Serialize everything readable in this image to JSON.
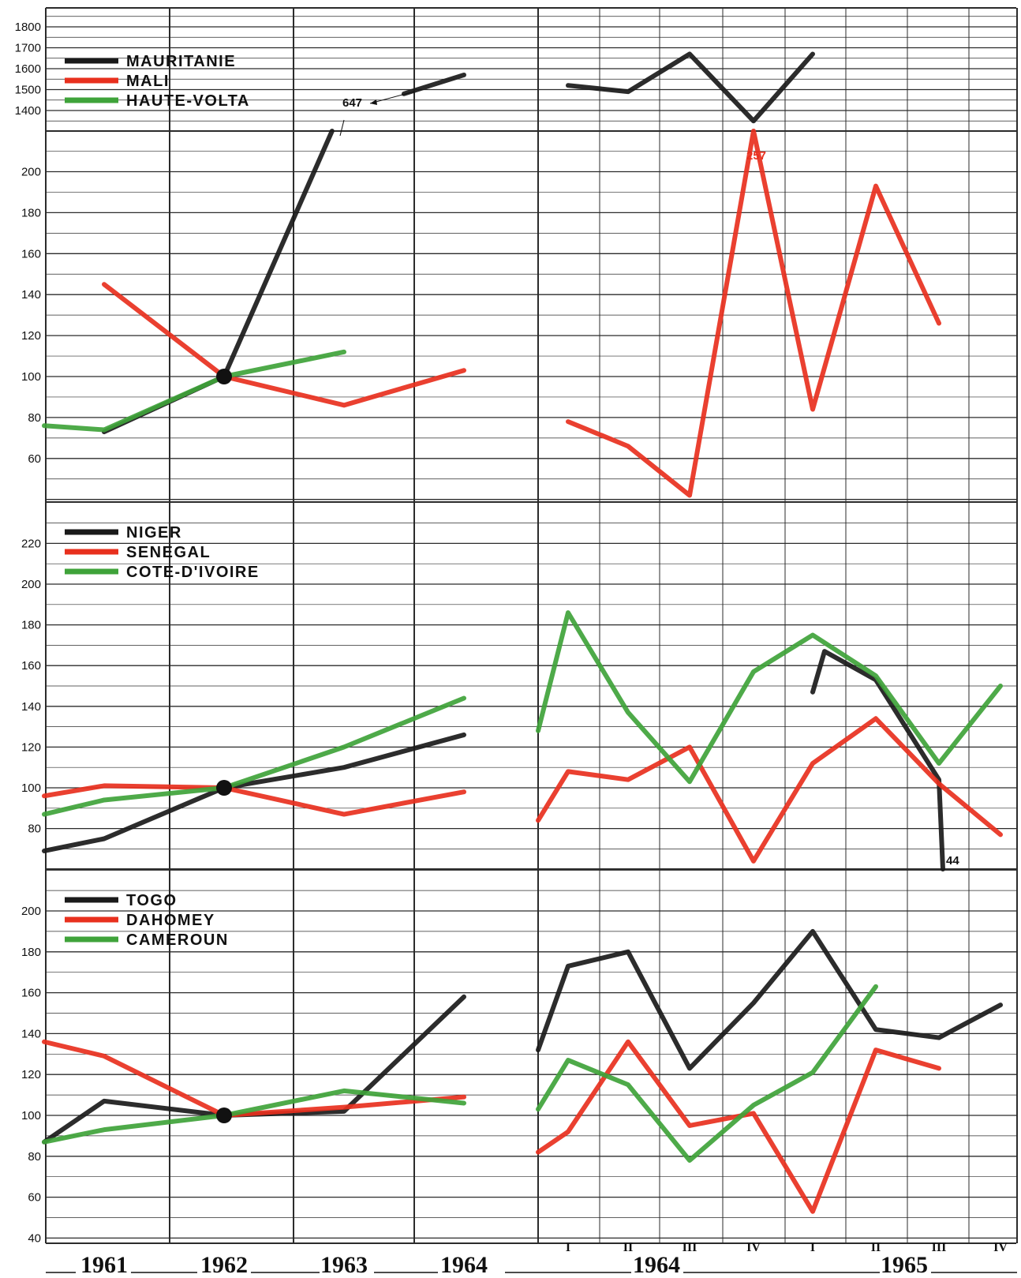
{
  "chart_data": [
    {
      "type": "line",
      "panel": "top",
      "legend_placement": "top-left",
      "grid": true,
      "break_axis": {
        "upper_ticks": [
          1400,
          1500,
          1600,
          1700,
          1800
        ],
        "upper_ylim": [
          1350,
          1850
        ]
      },
      "ylim": [
        40,
        230
      ],
      "yticks": [
        60,
        80,
        100,
        120,
        140,
        160,
        180,
        200
      ],
      "series": [
        {
          "name": "MAURITANIE",
          "color": "#1a1a1a",
          "annual": [
            {
              "x": 1961,
              "y": 73
            },
            {
              "x": 1962,
              "y": 100
            },
            {
              "x": 1962.9,
              "y": 647
            }
          ],
          "annual_upper": [
            {
              "x": 1963.5,
              "y": 1480
            },
            {
              "x": 1964,
              "y": 1570
            }
          ],
          "quarterly_upper": [
            {
              "x": "1964-I",
              "y": 1520
            },
            {
              "x": "1964-II",
              "y": 1490
            },
            {
              "x": "1964-III",
              "y": 1670
            },
            {
              "x": "1964-IV",
              "y": 1350
            },
            {
              "x": "1965-I",
              "y": 1670
            }
          ]
        },
        {
          "name": "MALI",
          "color": "#e8301e",
          "annual": [
            {
              "x": 1961,
              "y": 145
            },
            {
              "x": 1962,
              "y": 100
            },
            {
              "x": 1963,
              "y": 86
            },
            {
              "x": 1964,
              "y": 103
            }
          ],
          "quarterly": [
            {
              "x": "1964-I",
              "y": 78
            },
            {
              "x": "1964-II",
              "y": 66
            },
            {
              "x": "1964-III",
              "y": 42
            },
            {
              "x": "1964-IV",
              "y": 257
            },
            {
              "x": "1965-I",
              "y": 84
            },
            {
              "x": "1965-II",
              "y": 193
            },
            {
              "x": "1965-III",
              "y": 126
            }
          ]
        },
        {
          "name": "HAUTE-VOLTA",
          "color": "#3fa33a",
          "annual": [
            {
              "x": 1960.5,
              "y": 76
            },
            {
              "x": 1961,
              "y": 74
            },
            {
              "x": 1962,
              "y": 100
            },
            {
              "x": 1963,
              "y": 112
            }
          ]
        }
      ],
      "annotations": [
        {
          "text": "647",
          "series": "MAURITANIE"
        },
        {
          "text": "257",
          "series": "MALI"
        }
      ]
    },
    {
      "type": "line",
      "panel": "middle",
      "legend_placement": "top-left",
      "grid": true,
      "ylim": [
        60,
        240
      ],
      "yticks": [
        80,
        100,
        120,
        140,
        160,
        180,
        200,
        220
      ],
      "series": [
        {
          "name": "NIGER",
          "color": "#1a1a1a",
          "annual": [
            {
              "x": 1960.5,
              "y": 69
            },
            {
              "x": 1961,
              "y": 75
            },
            {
              "x": 1962,
              "y": 100
            },
            {
              "x": 1963,
              "y": 110
            },
            {
              "x": 1964,
              "y": 126
            }
          ],
          "quarterly": [
            {
              "x": "1965-I",
              "y": 147
            },
            {
              "x": "1965-I+",
              "y": 167
            },
            {
              "x": "1965-II",
              "y": 153
            },
            {
              "x": "1965-III",
              "y": 104
            },
            {
              "x": "1965-III+",
              "y": 44
            }
          ]
        },
        {
          "name": "SENEGAL",
          "color": "#e8301e",
          "annual": [
            {
              "x": 1960.5,
              "y": 96
            },
            {
              "x": 1961,
              "y": 101
            },
            {
              "x": 1962,
              "y": 100
            },
            {
              "x": 1963,
              "y": 87
            },
            {
              "x": 1964,
              "y": 98
            }
          ],
          "quarterly": [
            {
              "x": "1963-IV",
              "y": 84
            },
            {
              "x": "1964-I",
              "y": 108
            },
            {
              "x": "1964-II",
              "y": 104
            },
            {
              "x": "1964-III",
              "y": 120
            },
            {
              "x": "1964-IV",
              "y": 64
            },
            {
              "x": "1965-I",
              "y": 112
            },
            {
              "x": "1965-II",
              "y": 134
            },
            {
              "x": "1965-III",
              "y": 102
            },
            {
              "x": "1965-IV",
              "y": 77
            }
          ]
        },
        {
          "name": "COTE-D'IVOIRE",
          "color": "#3fa33a",
          "annual": [
            {
              "x": 1960.5,
              "y": 87
            },
            {
              "x": 1961,
              "y": 94
            },
            {
              "x": 1962,
              "y": 100
            },
            {
              "x": 1963,
              "y": 120
            },
            {
              "x": 1964,
              "y": 144
            }
          ],
          "quarterly": [
            {
              "x": "1963-IV",
              "y": 128
            },
            {
              "x": "1964-I",
              "y": 186
            },
            {
              "x": "1964-II",
              "y": 137
            },
            {
              "x": "1964-III",
              "y": 103
            },
            {
              "x": "1964-IV",
              "y": 157
            },
            {
              "x": "1965-I",
              "y": 175
            },
            {
              "x": "1965-II",
              "y": 155
            },
            {
              "x": "1965-III",
              "y": 112
            },
            {
              "x": "1965-IV",
              "y": 150
            }
          ]
        }
      ],
      "annotations": [
        {
          "text": "44",
          "series": "NIGER"
        }
      ]
    },
    {
      "type": "line",
      "panel": "bottom",
      "legend_placement": "top-left",
      "grid": true,
      "ylim": [
        40,
        220
      ],
      "yticks": [
        40,
        60,
        80,
        100,
        120,
        140,
        160,
        180,
        200
      ],
      "series": [
        {
          "name": "TOGO",
          "color": "#1a1a1a",
          "annual": [
            {
              "x": 1960.5,
              "y": 87
            },
            {
              "x": 1961,
              "y": 107
            },
            {
              "x": 1962,
              "y": 100
            },
            {
              "x": 1963,
              "y": 102
            },
            {
              "x": 1964,
              "y": 158
            }
          ],
          "quarterly": [
            {
              "x": "1963-IV",
              "y": 132
            },
            {
              "x": "1964-I",
              "y": 173
            },
            {
              "x": "1964-II",
              "y": 180
            },
            {
              "x": "1964-III",
              "y": 123
            },
            {
              "x": "1964-IV",
              "y": 155
            },
            {
              "x": "1965-I",
              "y": 190
            },
            {
              "x": "1965-II",
              "y": 142
            },
            {
              "x": "1965-III",
              "y": 138
            },
            {
              "x": "1965-IV",
              "y": 154
            }
          ]
        },
        {
          "name": "DAHOMEY",
          "color": "#e8301e",
          "annual": [
            {
              "x": 1960.5,
              "y": 136
            },
            {
              "x": 1961,
              "y": 129
            },
            {
              "x": 1962,
              "y": 100
            },
            {
              "x": 1963,
              "y": 104
            },
            {
              "x": 1964,
              "y": 109
            }
          ],
          "quarterly": [
            {
              "x": "1963-IV",
              "y": 82
            },
            {
              "x": "1964-I",
              "y": 92
            },
            {
              "x": "1964-II",
              "y": 136
            },
            {
              "x": "1964-III",
              "y": 95
            },
            {
              "x": "1964-IV",
              "y": 101
            },
            {
              "x": "1965-I",
              "y": 53
            },
            {
              "x": "1965-II",
              "y": 132
            },
            {
              "x": "1965-III",
              "y": 123
            }
          ]
        },
        {
          "name": "CAMEROUN",
          "color": "#3fa33a",
          "annual": [
            {
              "x": 1960.5,
              "y": 87
            },
            {
              "x": 1961,
              "y": 93
            },
            {
              "x": 1962,
              "y": 100
            },
            {
              "x": 1963,
              "y": 112
            },
            {
              "x": 1964,
              "y": 106
            }
          ],
          "quarterly": [
            {
              "x": "1963-IV",
              "y": 103
            },
            {
              "x": "1964-I",
              "y": 127
            },
            {
              "x": "1964-II",
              "y": 115
            },
            {
              "x": "1964-III",
              "y": 78
            },
            {
              "x": "1964-IV",
              "y": 105
            },
            {
              "x": "1965-I",
              "y": 121
            },
            {
              "x": "1965-II",
              "y": 163
            }
          ]
        }
      ]
    }
  ],
  "x_axis": {
    "annual_labels": [
      "1961",
      "1962",
      "1963",
      "1964"
    ],
    "quarter_labels": [
      "I",
      "II",
      "III",
      "IV",
      "I",
      "II",
      "III",
      "IV"
    ],
    "quarter_years": [
      "1964",
      "1965"
    ]
  },
  "colors": {
    "black": "#1a1a1a",
    "red": "#e8301e",
    "green": "#3fa33a",
    "grid": "#2b2b2b"
  }
}
